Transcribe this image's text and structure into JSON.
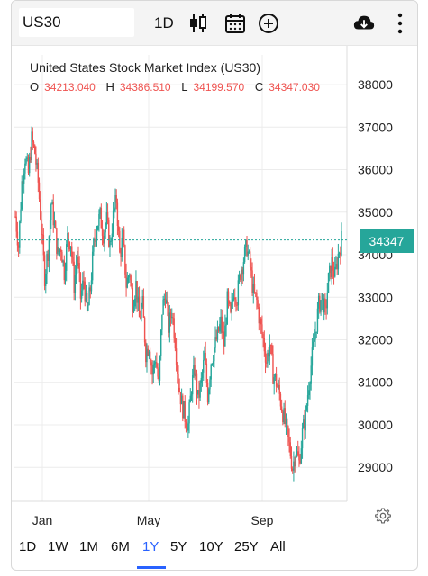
{
  "toolbar": {
    "symbol": "US30",
    "interval": "1D"
  },
  "legend": {
    "title": "United States Stock Market Index (US30)",
    "open_key": "O",
    "open": "34213.040",
    "high_key": "H",
    "high": "34386.510",
    "low_key": "L",
    "low": "34199.570",
    "close_key": "C",
    "close": "34347.030"
  },
  "colors": {
    "up": "#26a69a",
    "down": "#ef5350",
    "accent": "#2962ff",
    "price_line": "#26a69a"
  },
  "price_tag": "34347",
  "chart_data": {
    "type": "candlestick",
    "y_ticks": [
      "38000",
      "37000",
      "36000",
      "35000",
      "34000",
      "33000",
      "32000",
      "31000",
      "30000",
      "29000"
    ],
    "x_ticks": [
      "Jan",
      "May",
      "Sep"
    ],
    "ylim": [
      28200,
      38700
    ],
    "last_price": 34347,
    "series_points": [
      [
        0,
        34900
      ],
      [
        3,
        34200
      ],
      [
        6,
        35700
      ],
      [
        9,
        36300
      ],
      [
        12,
        35900
      ],
      [
        15,
        36700
      ],
      [
        18,
        36400
      ],
      [
        21,
        35700
      ],
      [
        24,
        34600
      ],
      [
        27,
        33500
      ],
      [
        30,
        34100
      ],
      [
        33,
        35200
      ],
      [
        36,
        34700
      ],
      [
        39,
        34000
      ],
      [
        42,
        34200
      ],
      [
        45,
        33600
      ],
      [
        48,
        34400
      ],
      [
        51,
        34300
      ],
      [
        54,
        33300
      ],
      [
        57,
        34000
      ],
      [
        60,
        33000
      ],
      [
        63,
        33400
      ],
      [
        66,
        32600
      ],
      [
        69,
        33200
      ],
      [
        72,
        34200
      ],
      [
        75,
        34700
      ],
      [
        78,
        34900
      ],
      [
        81,
        34500
      ],
      [
        84,
        34800
      ],
      [
        87,
        34200
      ],
      [
        90,
        34900
      ],
      [
        93,
        35300
      ],
      [
        96,
        34000
      ],
      [
        99,
        34400
      ],
      [
        102,
        33300
      ],
      [
        105,
        33600
      ],
      [
        108,
        32900
      ],
      [
        111,
        33300
      ],
      [
        114,
        32500
      ],
      [
        117,
        32800
      ],
      [
        120,
        31700
      ],
      [
        123,
        31900
      ],
      [
        126,
        31200
      ],
      [
        129,
        31600
      ],
      [
        132,
        30900
      ],
      [
        135,
        32700
      ],
      [
        138,
        33100
      ],
      [
        141,
        32300
      ],
      [
        144,
        32700
      ],
      [
        147,
        32000
      ],
      [
        150,
        31000
      ],
      [
        153,
        30500
      ],
      [
        156,
        30200
      ],
      [
        159,
        30000
      ],
      [
        162,
        30900
      ],
      [
        165,
        31300
      ],
      [
        168,
        30600
      ],
      [
        171,
        31000
      ],
      [
        174,
        31600
      ],
      [
        177,
        30700
      ],
      [
        180,
        31500
      ],
      [
        183,
        31800
      ],
      [
        186,
        32100
      ],
      [
        189,
        32400
      ],
      [
        192,
        31900
      ],
      [
        195,
        32900
      ],
      [
        198,
        32500
      ],
      [
        201,
        33200
      ],
      [
        204,
        33000
      ],
      [
        207,
        33600
      ],
      [
        210,
        33900
      ],
      [
        213,
        34200
      ],
      [
        216,
        33700
      ],
      [
        219,
        33100
      ],
      [
        222,
        32900
      ],
      [
        225,
        32400
      ],
      [
        228,
        32000
      ],
      [
        231,
        31500
      ],
      [
        234,
        31900
      ],
      [
        237,
        31200
      ],
      [
        240,
        31000
      ],
      [
        243,
        30700
      ],
      [
        246,
        30300
      ],
      [
        249,
        29900
      ],
      [
        252,
        29500
      ],
      [
        255,
        29000
      ],
      [
        258,
        29400
      ],
      [
        261,
        29100
      ],
      [
        264,
        29800
      ],
      [
        267,
        30200
      ],
      [
        270,
        31000
      ],
      [
        273,
        31600
      ],
      [
        276,
        32200
      ],
      [
        279,
        32800
      ],
      [
        282,
        33000
      ],
      [
        285,
        32600
      ],
      [
        288,
        33400
      ],
      [
        291,
        33800
      ],
      [
        294,
        33500
      ],
      [
        297,
        34000
      ],
      [
        300,
        34347
      ]
    ]
  },
  "ranges": [
    "1D",
    "1W",
    "1M",
    "6M",
    "1Y",
    "5Y",
    "10Y",
    "25Y",
    "All"
  ],
  "active_range": "1Y"
}
